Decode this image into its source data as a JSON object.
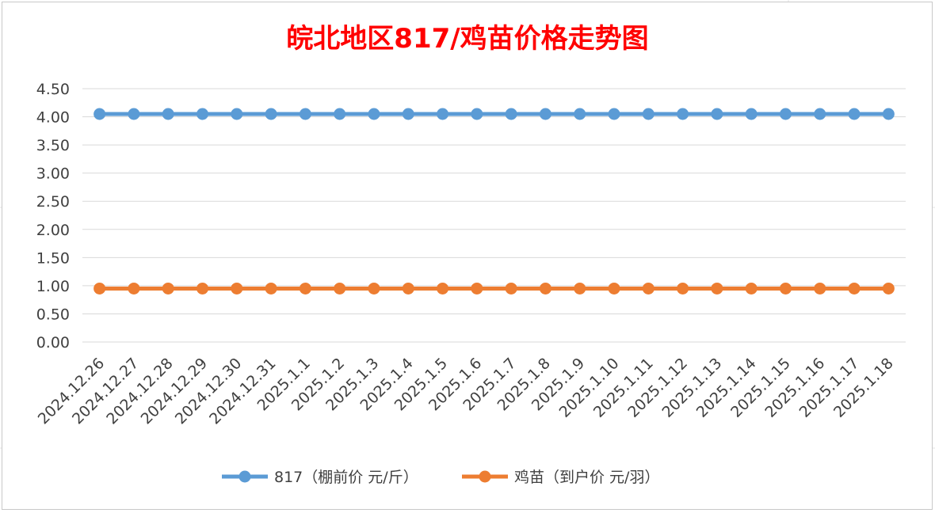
{
  "chart_data": {
    "type": "line",
    "title": "皖北地区817/鸡苗价格走势图",
    "categories": [
      "2024.12.26",
      "2024.12.27",
      "2024.12.28",
      "2024.12.29",
      "2024.12.30",
      "2024.12.31",
      "2025.1.1",
      "2025.1.2",
      "2025.1.3",
      "2025.1.4",
      "2025.1.5",
      "2025.1.6",
      "2025.1.7",
      "2025.1.8",
      "2025.1.9",
      "2025.1.10",
      "2025.1.11",
      "2025.1.12",
      "2025.1.13",
      "2025.1.14",
      "2025.1.15",
      "2025.1.16",
      "2025.1.17",
      "2025.1.18"
    ],
    "series": [
      {
        "name": "817（棚前价 元/斤）",
        "color": "#5b9bd5",
        "values": [
          4.05,
          4.05,
          4.05,
          4.05,
          4.05,
          4.05,
          4.05,
          4.05,
          4.05,
          4.05,
          4.05,
          4.05,
          4.05,
          4.05,
          4.05,
          4.05,
          4.05,
          4.05,
          4.05,
          4.05,
          4.05,
          4.05,
          4.05,
          4.05
        ]
      },
      {
        "name": "鸡苗（到户价 元/羽）",
        "color": "#ed7d31",
        "values": [
          0.95,
          0.95,
          0.95,
          0.95,
          0.95,
          0.95,
          0.95,
          0.95,
          0.95,
          0.95,
          0.95,
          0.95,
          0.95,
          0.95,
          0.95,
          0.95,
          0.95,
          0.95,
          0.95,
          0.95,
          0.95,
          0.95,
          0.95,
          0.95
        ]
      }
    ],
    "yticks": [
      "0.00",
      "0.50",
      "1.00",
      "1.50",
      "2.00",
      "2.50",
      "3.00",
      "3.50",
      "4.00",
      "4.50"
    ],
    "ylim": [
      0,
      4.5
    ],
    "grid": true,
    "legend_position": "bottom"
  }
}
